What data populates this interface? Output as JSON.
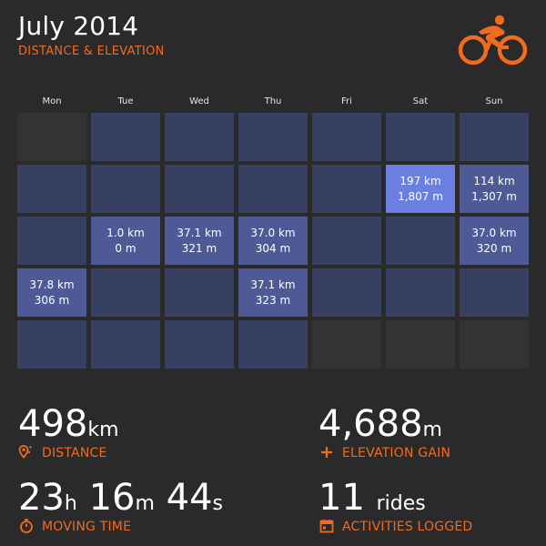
{
  "header": {
    "title": "July 2014",
    "subtitle": "DISTANCE & ELEVATION"
  },
  "logo": {
    "icon": "cyclist-icon",
    "color": "#f26b21"
  },
  "calendar": {
    "weekdays": [
      "Mon",
      "Tue",
      "Wed",
      "Thu",
      "Fri",
      "Sat",
      "Sun"
    ],
    "weeks": [
      [
        {
          "state": "outside"
        },
        {
          "state": "empty"
        },
        {
          "state": "empty"
        },
        {
          "state": "empty"
        },
        {
          "state": "empty"
        },
        {
          "state": "empty"
        },
        {
          "state": "empty"
        }
      ],
      [
        {
          "state": "empty"
        },
        {
          "state": "empty"
        },
        {
          "state": "empty"
        },
        {
          "state": "empty"
        },
        {
          "state": "empty"
        },
        {
          "state": "l3",
          "distance": "197 km",
          "elevation": "1,807 m"
        },
        {
          "state": "l1",
          "distance": "114 km",
          "elevation": "1,307 m"
        }
      ],
      [
        {
          "state": "empty"
        },
        {
          "state": "l1",
          "distance": "1.0 km",
          "elevation": "0 m"
        },
        {
          "state": "l1",
          "distance": "37.1 km",
          "elevation": "321 m"
        },
        {
          "state": "l1",
          "distance": "37.0 km",
          "elevation": "304 m"
        },
        {
          "state": "empty"
        },
        {
          "state": "empty"
        },
        {
          "state": "l1",
          "distance": "37.0 km",
          "elevation": "320 m"
        }
      ],
      [
        {
          "state": "l1",
          "distance": "37.8 km",
          "elevation": "306 m"
        },
        {
          "state": "empty"
        },
        {
          "state": "empty"
        },
        {
          "state": "l1",
          "distance": "37.1 km",
          "elevation": "323 m"
        },
        {
          "state": "empty"
        },
        {
          "state": "empty"
        },
        {
          "state": "empty"
        }
      ],
      [
        {
          "state": "empty"
        },
        {
          "state": "empty"
        },
        {
          "state": "empty"
        },
        {
          "state": "empty"
        },
        {
          "state": "outside"
        },
        {
          "state": "outside"
        },
        {
          "state": "outside"
        }
      ]
    ]
  },
  "stats": {
    "distance": {
      "value": "498",
      "unit": "km",
      "label": "DISTANCE",
      "icon": "location-pin-icon"
    },
    "elevation": {
      "value": "4,688",
      "unit": "m",
      "label": "ELEVATION GAIN",
      "icon": "plus-icon"
    },
    "moving_time": {
      "hours": "23",
      "h_unit": "h",
      "minutes": "16",
      "m_unit": "m",
      "seconds": "44",
      "s_unit": "s",
      "label": "MOVING TIME",
      "icon": "stopwatch-icon"
    },
    "activities": {
      "value": "11",
      "unit": "rides",
      "label": "ACTIVITIES LOGGED",
      "icon": "calendar-icon"
    }
  },
  "colors": {
    "background": "#2a2a2b",
    "accent": "#f26b21",
    "cell_empty": "#374061",
    "cell_active": "#4e5a96",
    "cell_high": "#6a7fe0"
  }
}
